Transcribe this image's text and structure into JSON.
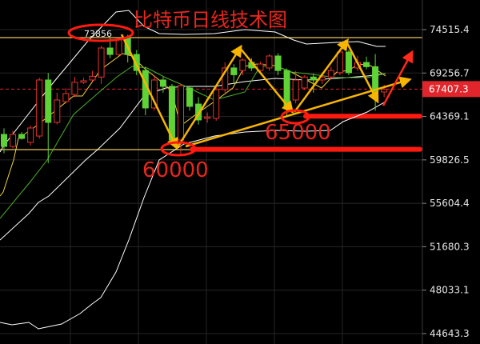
{
  "chart_data": {
    "type": "candlestick",
    "title": "比特币日线技术图",
    "y_scale": "log",
    "ylim": [
      43500,
      78000
    ],
    "grid": true,
    "y_ticks": [
      "74515.4",
      "69256.7",
      "64369.1",
      "59826.5",
      "55604.4",
      "51680.3",
      "48033.1",
      "44643.3"
    ],
    "y_tick_values": [
      74515.4,
      69256.7,
      64369.1,
      59826.5,
      55604.4,
      51680.3,
      48033.1,
      44643.3
    ],
    "current_price": {
      "label": "67407.3",
      "value": 67407.3,
      "color": "#e0262c"
    },
    "up_color": "#e8322c",
    "down_color": "#5fd335",
    "candles_ohlc": [
      [
        62450,
        63100,
        60500,
        61200
      ],
      [
        61200,
        62800,
        61000,
        62450
      ],
      [
        62450,
        62700,
        61900,
        62030
      ],
      [
        61620,
        63400,
        61300,
        63130
      ],
      [
        62280,
        68700,
        62000,
        68450
      ],
      [
        68450,
        69250,
        59500,
        63730
      ],
      [
        63730,
        67000,
        63500,
        66180
      ],
      [
        66000,
        67500,
        65800,
        66900
      ],
      [
        66810,
        68800,
        66500,
        68180
      ],
      [
        68180,
        68700,
        68000,
        68360
      ],
      [
        68450,
        69500,
        68300,
        68880
      ],
      [
        68790,
        72500,
        68000,
        72240
      ],
      [
        72240,
        73500,
        71000,
        71460
      ],
      [
        71460,
        73500,
        71300,
        73220
      ],
      [
        73400,
        73856,
        70500,
        71460
      ],
      [
        71460,
        72000,
        69000,
        69550
      ],
      [
        69550,
        70000,
        64500,
        65300
      ],
      [
        65300,
        69000,
        65000,
        68450
      ],
      [
        68450,
        68800,
        67000,
        67720
      ],
      [
        67720,
        68000,
        61500,
        61870
      ],
      [
        61870,
        68000,
        60200,
        67810
      ],
      [
        67530,
        67800,
        65000,
        65470
      ],
      [
        65730,
        66500,
        63500,
        63990
      ],
      [
        64160,
        64800,
        63700,
        64300
      ],
      [
        64160,
        67600,
        63900,
        67350
      ],
      [
        67350,
        70500,
        67000,
        69850
      ],
      [
        69850,
        70300,
        68000,
        69060
      ],
      [
        69550,
        71000,
        69000,
        70790
      ],
      [
        70500,
        71000,
        69500,
        69850
      ],
      [
        69550,
        70600,
        69300,
        70318
      ],
      [
        69850,
        71500,
        69500,
        71273
      ],
      [
        71273,
        71600,
        69000,
        69550
      ],
      [
        69550,
        69800,
        64500,
        65300
      ],
      [
        66180,
        69500,
        65800,
        68450
      ],
      [
        67530,
        69000,
        67300,
        68790
      ],
      [
        68790,
        69200,
        67000,
        68450
      ],
      [
        68450,
        69300,
        68000,
        68790
      ],
      [
        68790,
        70000,
        68500,
        69550
      ],
      [
        69300,
        72000,
        69000,
        71750
      ],
      [
        71750,
        72000,
        69000,
        69300
      ],
      [
        69850,
        71300,
        69500,
        70500
      ],
      [
        70500,
        71200,
        69700,
        70000
      ],
      [
        70000,
        71500,
        65000,
        67080
      ],
      [
        67080,
        67900,
        66500,
        67400
      ]
    ],
    "horizontal_levels": [
      {
        "value": 73520,
        "color": "#e8c85a"
      },
      {
        "value": 60870,
        "color": "#e8c85a"
      }
    ],
    "support_levels": [
      {
        "value": 64400,
        "color": "#ff1a10"
      },
      {
        "value": 60900,
        "color": "#ff1a10"
      }
    ],
    "annotations": {
      "high_label": "73856",
      "low_label_1": "60000",
      "low_label_2": "65000"
    },
    "indicator_colors": {
      "bollinger": "#ffffff",
      "ma_fast": "#f2d33a",
      "ma_slow": "#4caf2a"
    },
    "arrow_colors": {
      "trend": "#f7b500",
      "projection": "#ff2a1a"
    }
  }
}
